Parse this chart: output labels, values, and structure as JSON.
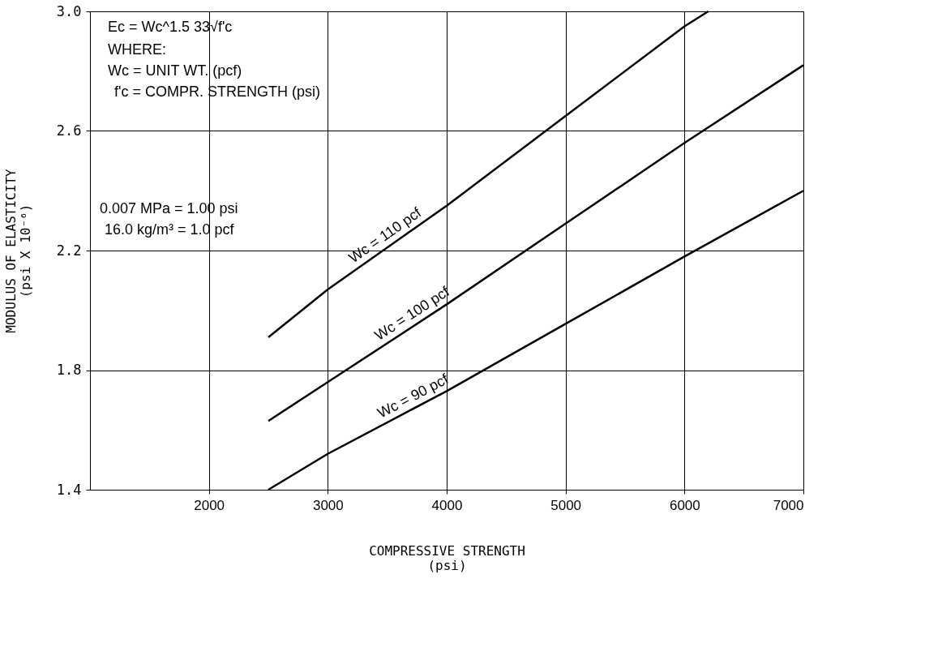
{
  "chart_data": {
    "type": "line",
    "xlabel": [
      "COMPRESSIVE STRENGTH",
      "(psi)"
    ],
    "ylabel": [
      "MODULUS OF ELASTICITY",
      "(psi X 10⁻⁶)"
    ],
    "xlim": [
      1000,
      7000
    ],
    "xticks": [
      2000,
      3000,
      4000,
      5000,
      6000,
      7000
    ],
    "ylim": [
      1.4,
      3.0
    ],
    "yticks": [
      1.4,
      1.8,
      2.2,
      2.6,
      {
        "value": 3.0,
        "label": "3.0"
      }
    ],
    "grid": true,
    "legend": false,
    "marker": "none",
    "line_style": "solid",
    "series": [
      {
        "name": "Wc = 110 pcf",
        "color": "#000000",
        "x": [
          2500,
          3000,
          4000,
          5000,
          6000,
          6200
        ],
        "values": [
          1.91,
          2.07,
          2.35,
          2.65,
          2.95,
          3.0
        ]
      },
      {
        "name": "Wc = 100 pcf",
        "color": "#000000",
        "x": [
          2500,
          3000,
          4000,
          5000,
          6000,
          7000
        ],
        "values": [
          1.63,
          1.76,
          2.02,
          2.29,
          2.56,
          2.82
        ]
      },
      {
        "name": "Wc = 90 pcf",
        "color": "#000000",
        "x": [
          2500,
          3000,
          4000,
          5000,
          6000,
          7000
        ],
        "values": [
          1.4,
          1.52,
          1.73,
          1.955,
          2.18,
          2.4
        ]
      }
    ],
    "annotations": [
      "Ec = Wc^1.5 33√f'c",
      "WHERE:",
      "Wc = UNIT WT. (pcf)",
      "f'c = COMPR. STRENGTH (psi)",
      "0.007 MPa = 1.00 psi",
      "16.0 kg/m³ = 1.0 pcf"
    ]
  }
}
